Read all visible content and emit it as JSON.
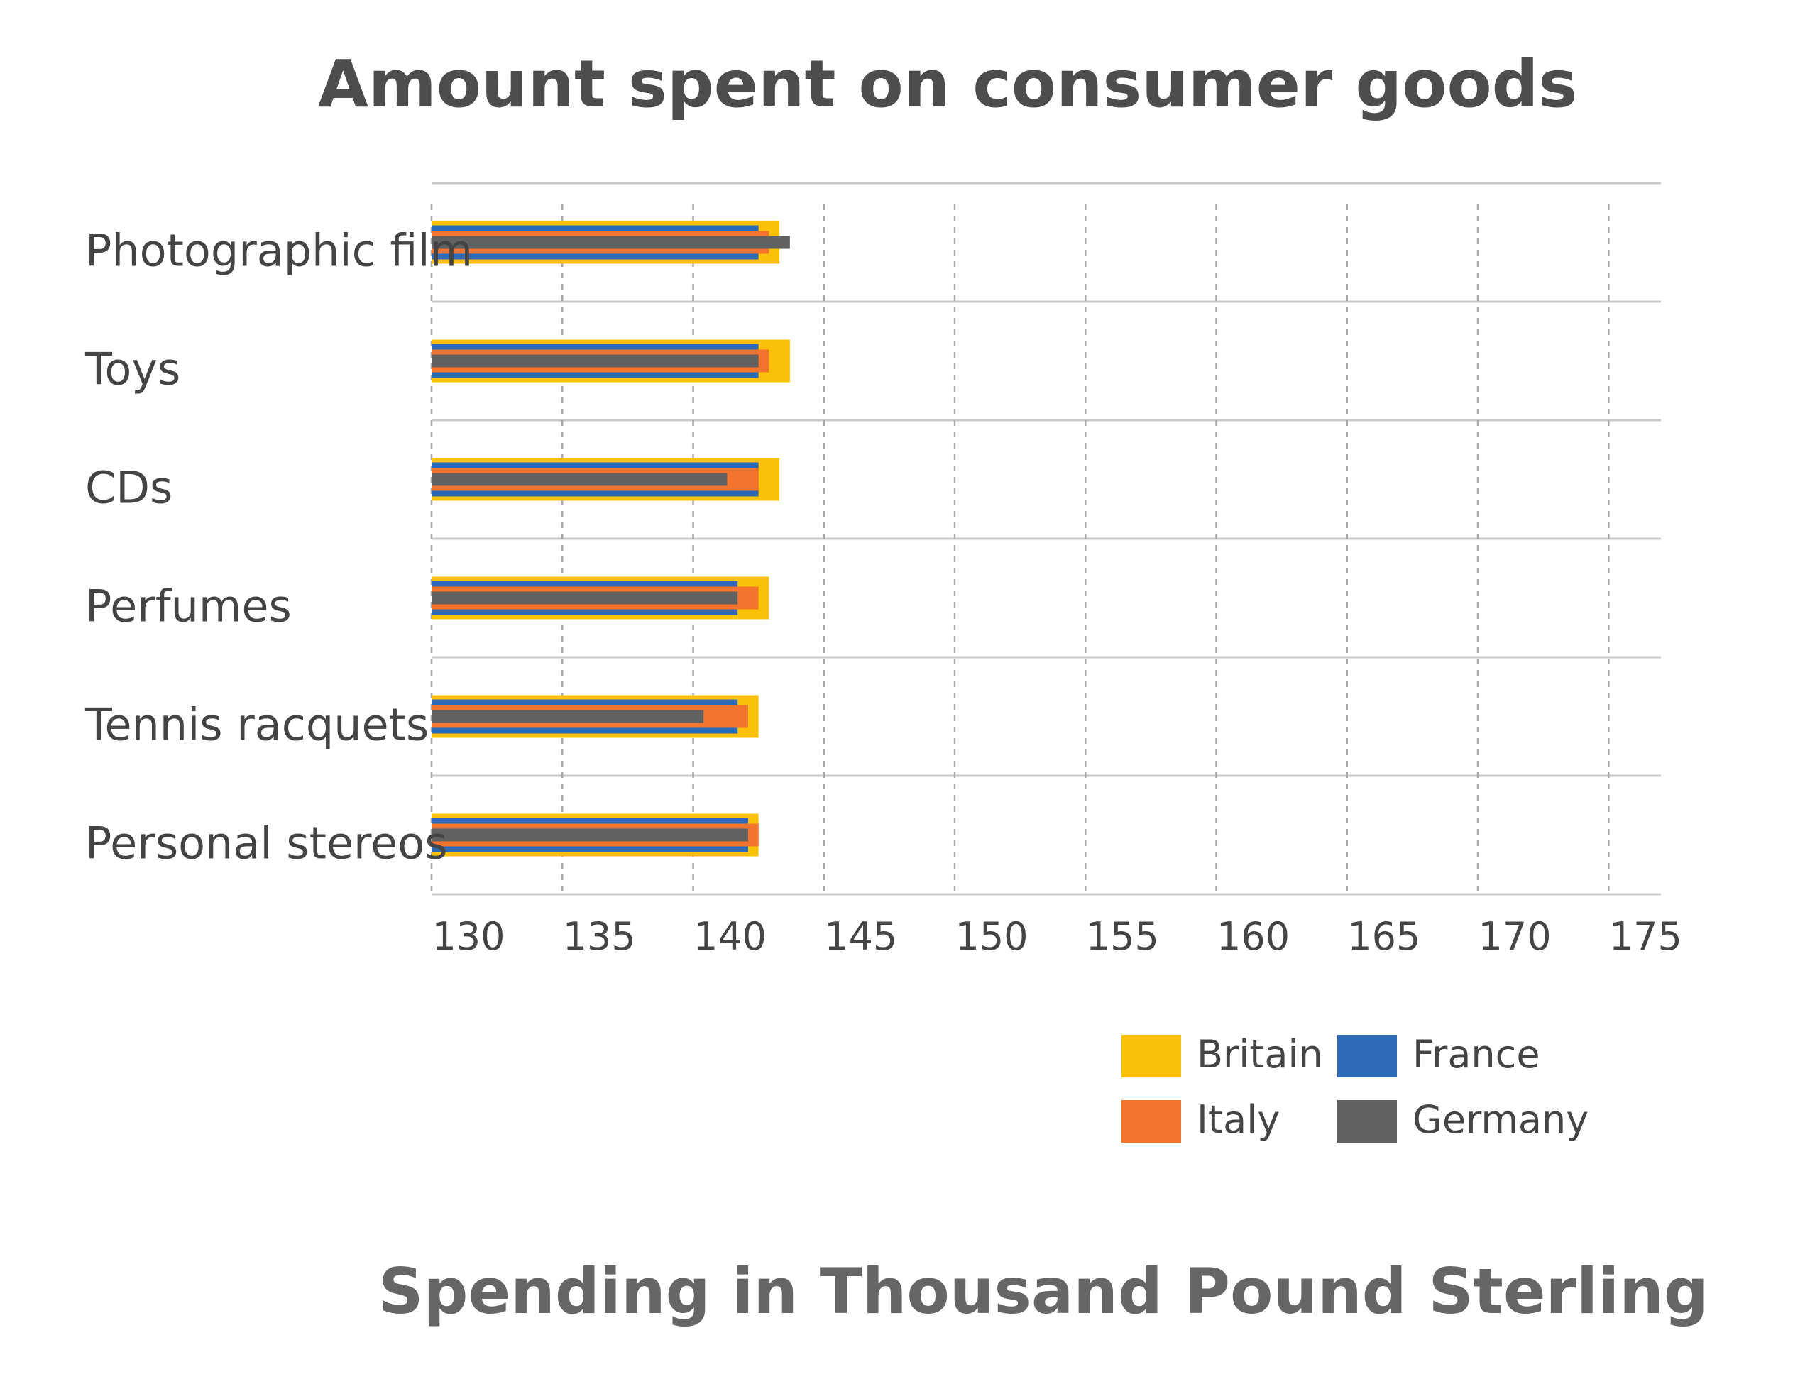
{
  "chart_data": {
    "type": "bar",
    "orientation": "horizontal",
    "title": "Amount spent on consumer goods",
    "xlabel": "Spending in Thousand Pound Sterling",
    "ylabel": "",
    "categories": [
      "Photographic film",
      "Toys",
      "CDs",
      "Perfumes",
      "Tennis racquets",
      "Personal stereos"
    ],
    "xlim": [
      130,
      177
    ],
    "xticks": [
      "130",
      "135",
      "140",
      "145",
      "150",
      "155",
      "160",
      "165",
      "170",
      "175"
    ],
    "grid": true,
    "legend_position": "bottom-right",
    "series": [
      {
        "name": "Britain",
        "color": "#FBC108",
        "values": [
          143.3,
          143.7,
          143.3,
          142.9,
          142.5,
          142.5
        ]
      },
      {
        "name": "France",
        "color": "#2E6AB5",
        "values": [
          142.5,
          142.5,
          142.5,
          141.7,
          141.7,
          142.1
        ]
      },
      {
        "name": "Italy",
        "color": "#F2742D",
        "values": [
          142.9,
          142.9,
          142.5,
          142.5,
          142.1,
          142.5
        ]
      },
      {
        "name": "Germany",
        "color": "#616161",
        "values": [
          143.7,
          142.5,
          141.3,
          141.7,
          140.4,
          142.1
        ]
      }
    ]
  }
}
